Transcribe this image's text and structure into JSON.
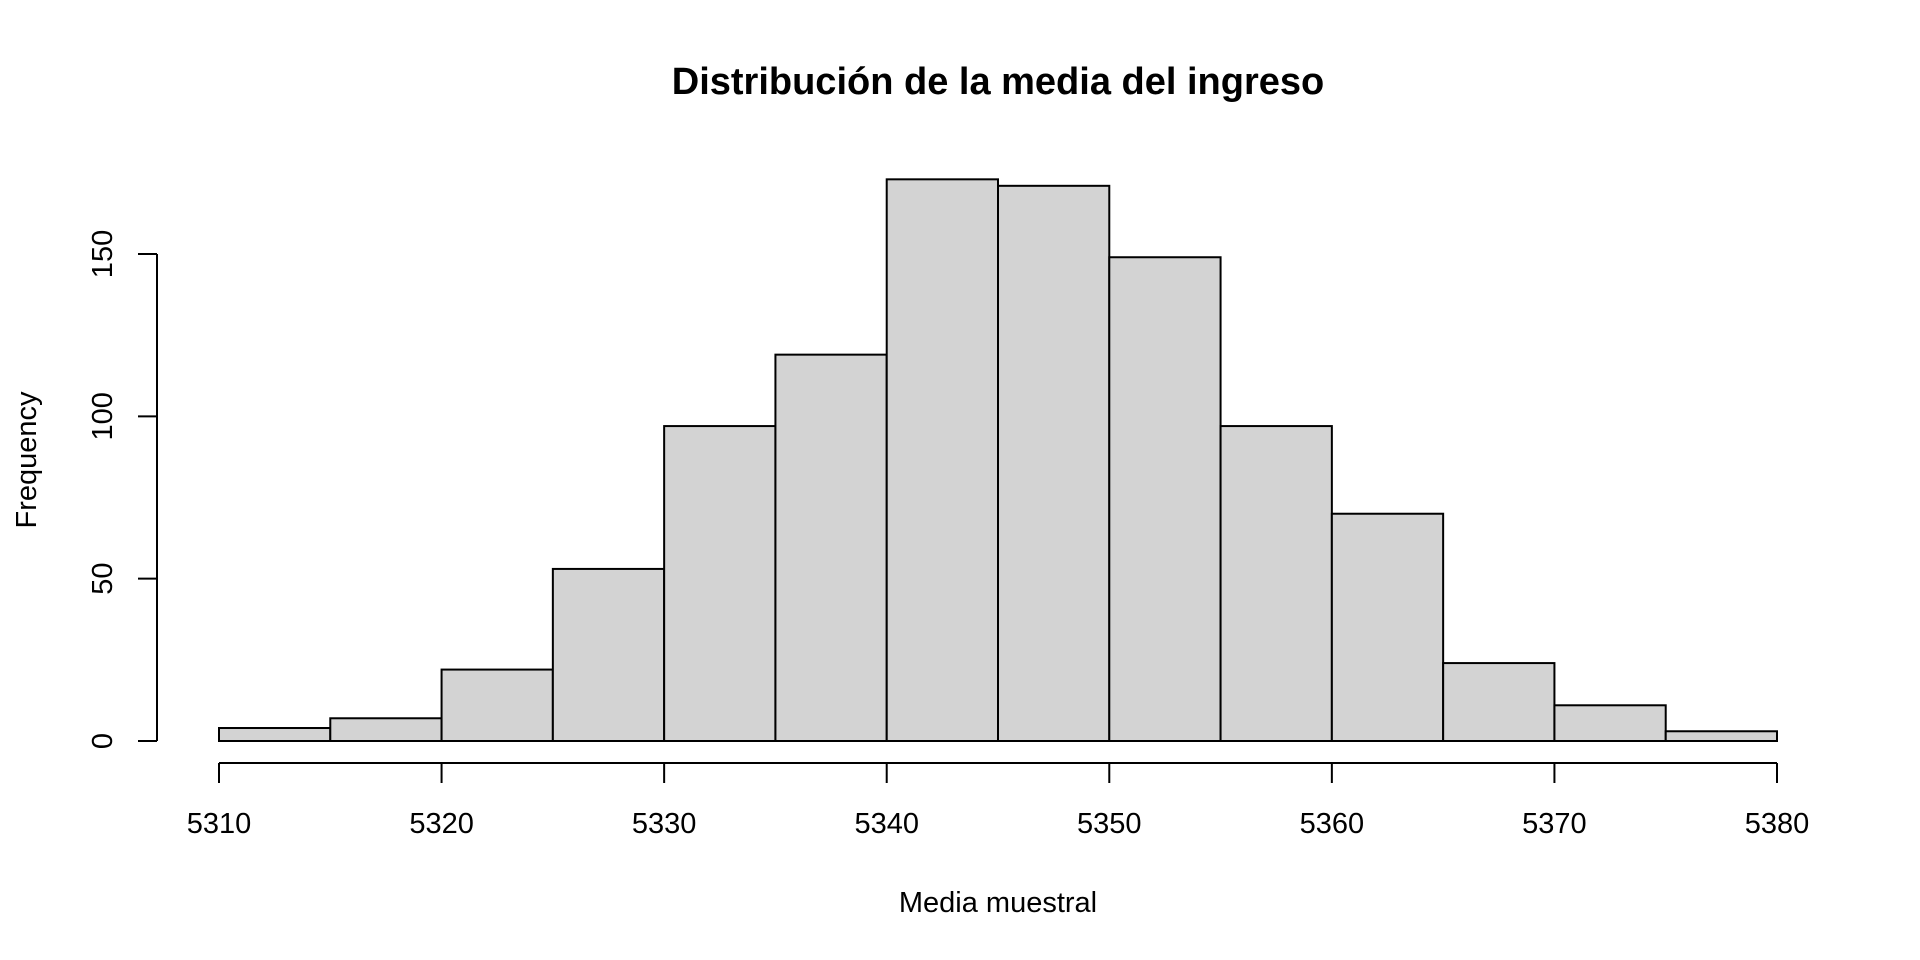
{
  "chart_data": {
    "type": "bar",
    "subtype": "histogram",
    "title": "Distribución de la media del ingreso",
    "xlabel": "Media muestral",
    "ylabel": "Frequency",
    "bin_edges": [
      5310,
      5315,
      5320,
      5325,
      5330,
      5335,
      5340,
      5345,
      5350,
      5355,
      5360,
      5365,
      5370,
      5375,
      5380
    ],
    "values": [
      4,
      7,
      22,
      53,
      97,
      119,
      173,
      171,
      149,
      97,
      70,
      24,
      11,
      3
    ],
    "xlim": [
      5310,
      5380
    ],
    "ylim": [
      0,
      150
    ],
    "xticks": [
      "5310",
      "5320",
      "5330",
      "5340",
      "5350",
      "5360",
      "5370",
      "5380"
    ],
    "yticks": [
      "0",
      "50",
      "100",
      "150"
    ],
    "grid": false,
    "colors": {
      "bar_fill": "#d3d3d3",
      "bar_stroke": "#000000"
    }
  }
}
